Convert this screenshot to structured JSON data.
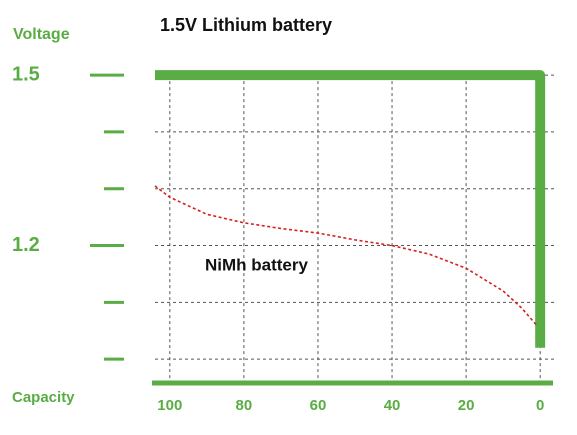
{
  "chart_data": {
    "type": "line",
    "ylabel": "Voltage",
    "xlabel": "Capacity",
    "xlim": [
      104,
      -4
    ],
    "xticks": [
      100,
      80,
      60,
      40,
      20,
      0
    ],
    "ylim": [
      1.59,
      0.995
    ],
    "yticks": [
      1.5,
      1.2
    ],
    "minor_yticks": [
      1.4,
      1.3,
      1.1,
      1.0
    ],
    "grid": true,
    "axis_color": "#5aac44",
    "series": [
      {
        "name": "1.5V Lithium battery",
        "color": "#5aac44",
        "style": "solid",
        "x": [
          104,
          0,
          0
        ],
        "values": [
          1.5,
          1.5,
          1.02
        ]
      },
      {
        "name": "NiMh battery",
        "color": "#d42020",
        "style": "dashed",
        "x": [
          104,
          100,
          90,
          80,
          70,
          60,
          50,
          40,
          30,
          20,
          10,
          5,
          1
        ],
        "values": [
          1.305,
          1.285,
          1.255,
          1.24,
          1.23,
          1.222,
          1.21,
          1.2,
          1.185,
          1.16,
          1.12,
          1.09,
          1.06
        ]
      }
    ]
  }
}
